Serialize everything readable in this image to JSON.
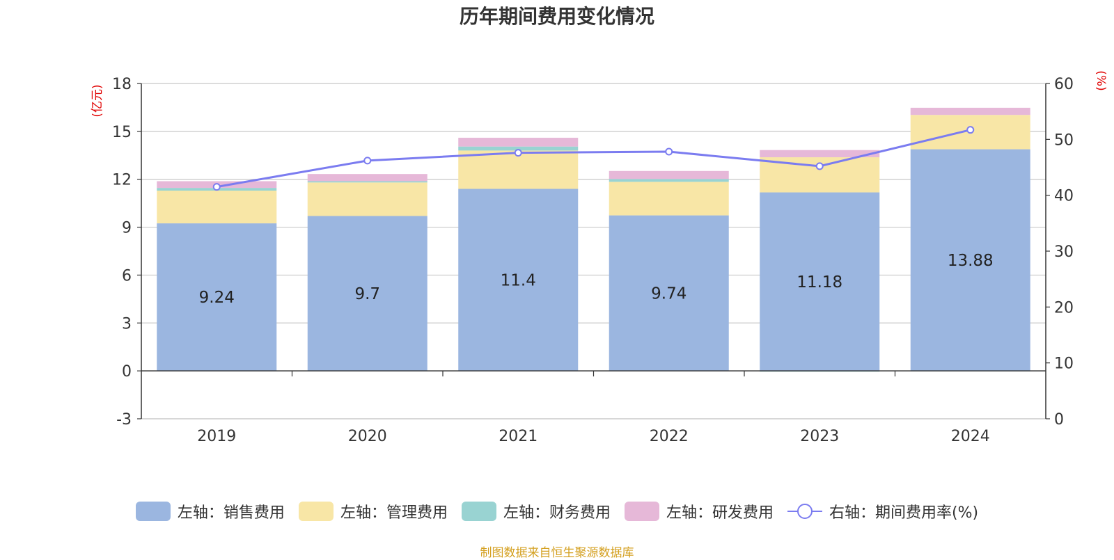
{
  "chart_data": {
    "type": "bar",
    "title": "历年期间费用变化情况",
    "categories": [
      "2019",
      "2020",
      "2021",
      "2022",
      "2023",
      "2024"
    ],
    "left_axis": {
      "unit_label": "(亿元)",
      "ylim": [
        -3,
        18
      ],
      "ticks": [
        -3,
        0,
        3,
        6,
        9,
        12,
        15,
        18
      ]
    },
    "right_axis": {
      "unit_label": "(%)",
      "ylim": [
        0,
        60
      ],
      "ticks": [
        0,
        10,
        20,
        30,
        40,
        50,
        60
      ]
    },
    "series": [
      {
        "name": "左轴：销售费用",
        "type": "bar",
        "axis": "left",
        "color": "#9bb6e0",
        "values": [
          9.24,
          9.7,
          11.4,
          9.74,
          11.18,
          13.88
        ],
        "labels": [
          "9.24",
          "9.7",
          "11.4",
          "9.74",
          "11.18",
          "13.88"
        ]
      },
      {
        "name": "左轴：管理费用",
        "type": "bar",
        "axis": "left",
        "color": "#f8e6a6",
        "values": [
          2.05,
          2.1,
          2.4,
          2.1,
          2.2,
          2.15
        ]
      },
      {
        "name": "左轴：财务费用",
        "type": "bar",
        "axis": "left",
        "color": "#99d3d2",
        "values": [
          0.17,
          0.08,
          0.25,
          0.18,
          -0.05,
          -0.02
        ]
      },
      {
        "name": "左轴：研发费用",
        "type": "bar",
        "axis": "left",
        "color": "#e6b8d8",
        "values": [
          0.42,
          0.45,
          0.55,
          0.5,
          0.45,
          0.45
        ]
      },
      {
        "name": "右轴：期间费用率(%)",
        "type": "line",
        "axis": "right",
        "color": "#7b7cf0",
        "values": [
          41.5,
          46.2,
          47.6,
          47.8,
          45.2,
          51.7
        ]
      }
    ],
    "grid": true,
    "legend_position": "bottom"
  },
  "source_note": "制图数据来自恒生聚源数据库"
}
